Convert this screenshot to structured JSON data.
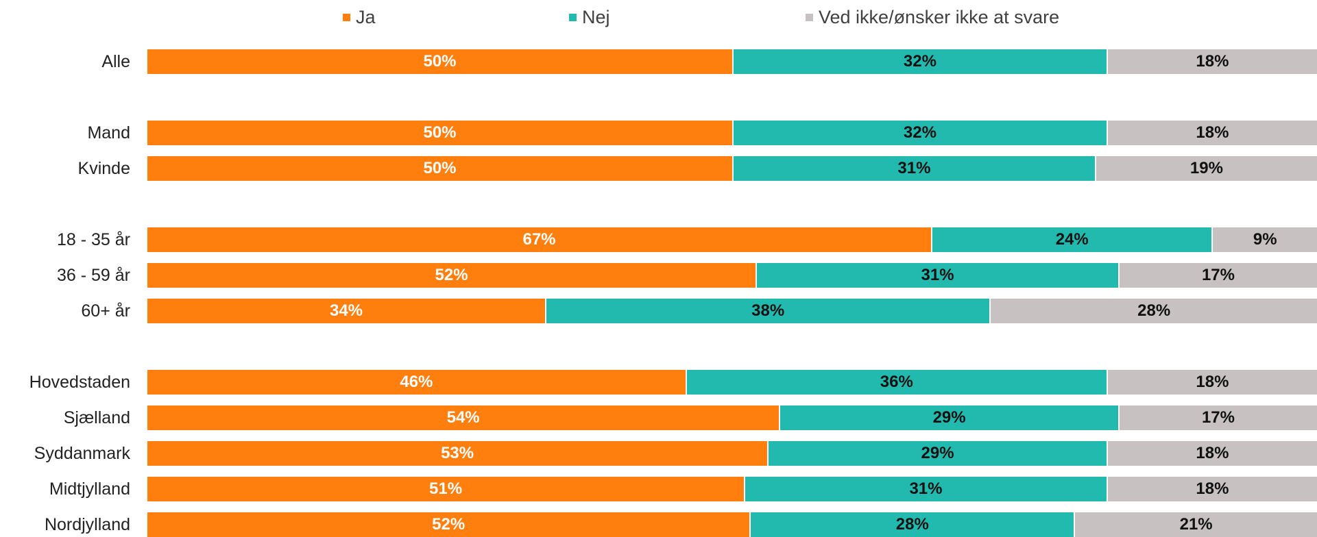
{
  "chart_data": {
    "type": "bar",
    "orientation": "horizontal",
    "stacked": true,
    "percent_stacked": true,
    "legend_position": "top",
    "series": [
      {
        "name": "Ja",
        "color": "#FF7F0E",
        "label_color": "#FFFFFF",
        "values": [
          50,
          50,
          50,
          67,
          52,
          34,
          46,
          54,
          53,
          51,
          52
        ]
      },
      {
        "name": "Nej",
        "color": "#22BAAE",
        "label_color": "#111111",
        "values": [
          32,
          32,
          31,
          24,
          31,
          38,
          36,
          29,
          29,
          31,
          28
        ]
      },
      {
        "name": "Ved ikke/ønsker ikke at svare",
        "color": "#C7C1C1",
        "label_color": "#111111",
        "values": [
          18,
          18,
          19,
          9,
          17,
          28,
          18,
          17,
          18,
          18,
          21
        ]
      }
    ],
    "categories": [
      "Alle",
      "Mand",
      "Kvinde",
      "18 - 35 år",
      "36 - 59 år",
      "60+ år",
      "Hovedstaden",
      "Sjælland",
      "Syddanmark",
      "Midtjylland",
      "Nordjylland"
    ],
    "groups": [
      [
        "Alle"
      ],
      [
        "Mand",
        "Kvinde"
      ],
      [
        "18 - 35 år",
        "36 - 59 år",
        "60+ år"
      ],
      [
        "Hovedstaden",
        "Sjælland",
        "Syddanmark",
        "Midtjylland",
        "Nordjylland"
      ]
    ],
    "value_suffix": "%",
    "xlim": [
      0,
      100
    ],
    "grid": false
  }
}
